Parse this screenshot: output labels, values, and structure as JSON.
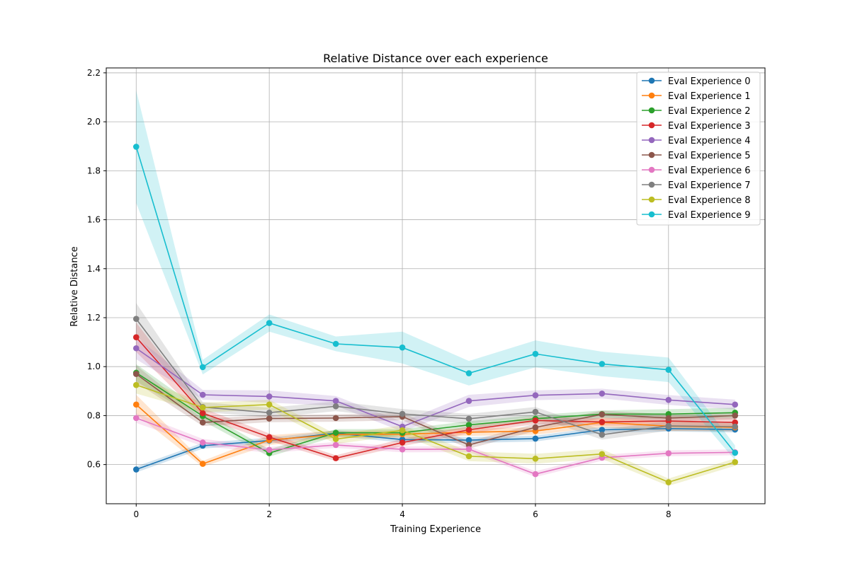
{
  "chart_data": {
    "type": "line",
    "title": "Relative Distance over each experience",
    "xlabel": "Training Experience",
    "ylabel": "Relative Distance",
    "xlim": [
      -0.45,
      9.45
    ],
    "ylim": [
      0.44,
      2.22
    ],
    "xticks": [
      0,
      2,
      4,
      6,
      8
    ],
    "yticks": [
      0.6,
      0.8,
      1.0,
      1.2,
      1.4,
      1.6,
      1.8,
      2.0,
      2.2
    ],
    "grid": true,
    "legend_position": "top-right",
    "x": [
      0,
      1,
      2,
      3,
      4,
      5,
      6,
      7,
      8,
      9
    ],
    "series": [
      {
        "name": "Eval Experience 0",
        "color": "#1f77b4",
        "values": [
          0.58,
          0.677,
          0.698,
          0.728,
          0.702,
          0.7,
          0.706,
          0.742,
          0.747,
          0.743
        ],
        "band": [
          0.012,
          0.012,
          0.012,
          0.012,
          0.012,
          0.012,
          0.012,
          0.012,
          0.012,
          0.012
        ]
      },
      {
        "name": "Eval Experience 1",
        "color": "#ff7f0e",
        "values": [
          0.845,
          0.603,
          0.7,
          0.723,
          0.724,
          0.732,
          0.737,
          0.772,
          0.757,
          0.752
        ],
        "band": [
          0.04,
          0.012,
          0.02,
          0.015,
          0.015,
          0.015,
          0.015,
          0.02,
          0.02,
          0.015
        ]
      },
      {
        "name": "Eval Experience 2",
        "color": "#2ca02c",
        "values": [
          0.975,
          0.798,
          0.647,
          0.73,
          0.73,
          0.762,
          0.787,
          0.806,
          0.806,
          0.812
        ],
        "band": [
          0.035,
          0.02,
          0.015,
          0.015,
          0.015,
          0.015,
          0.015,
          0.015,
          0.02,
          0.02
        ]
      },
      {
        "name": "Eval Experience 3",
        "color": "#d62728",
        "values": [
          1.12,
          0.81,
          0.712,
          0.626,
          0.69,
          0.742,
          0.78,
          0.774,
          0.778,
          0.772
        ],
        "band": [
          0.06,
          0.02,
          0.015,
          0.012,
          0.015,
          0.015,
          0.015,
          0.015,
          0.02,
          0.02
        ]
      },
      {
        "name": "Eval Experience 4",
        "color": "#9467bd",
        "values": [
          1.075,
          0.885,
          0.878,
          0.86,
          0.755,
          0.86,
          0.883,
          0.89,
          0.864,
          0.845
        ],
        "band": [
          0.045,
          0.02,
          0.025,
          0.02,
          0.02,
          0.025,
          0.02,
          0.02,
          0.02,
          0.02
        ]
      },
      {
        "name": "Eval Experience 5",
        "color": "#8c564b",
        "values": [
          0.97,
          0.772,
          0.788,
          0.79,
          0.796,
          0.68,
          0.752,
          0.805,
          0.79,
          0.8
        ],
        "band": [
          0.035,
          0.015,
          0.015,
          0.015,
          0.015,
          0.015,
          0.015,
          0.015,
          0.015,
          0.015
        ]
      },
      {
        "name": "Eval Experience 6",
        "color": "#e377c2",
        "values": [
          0.79,
          0.69,
          0.66,
          0.68,
          0.662,
          0.663,
          0.561,
          0.628,
          0.646,
          0.65
        ],
        "band": [
          0.02,
          0.015,
          0.012,
          0.012,
          0.012,
          0.012,
          0.012,
          0.012,
          0.012,
          0.012
        ]
      },
      {
        "name": "Eval Experience 7",
        "color": "#7f7f7f",
        "values": [
          1.195,
          0.835,
          0.812,
          0.838,
          0.807,
          0.787,
          0.815,
          0.722,
          0.758,
          0.755
        ],
        "band": [
          0.065,
          0.02,
          0.02,
          0.02,
          0.02,
          0.02,
          0.02,
          0.02,
          0.02,
          0.02
        ]
      },
      {
        "name": "Eval Experience 8",
        "color": "#bcbd22",
        "values": [
          0.925,
          0.833,
          0.845,
          0.704,
          0.74,
          0.634,
          0.624,
          0.643,
          0.528,
          0.61
        ],
        "band": [
          0.035,
          0.02,
          0.02,
          0.02,
          0.02,
          0.02,
          0.02,
          0.02,
          0.015,
          0.015
        ]
      },
      {
        "name": "Eval Experience 9",
        "color": "#17becf",
        "values": [
          1.898,
          0.998,
          1.178,
          1.093,
          1.078,
          0.973,
          1.052,
          1.011,
          0.987,
          0.648
        ],
        "band": [
          0.23,
          0.03,
          0.035,
          0.03,
          0.065,
          0.05,
          0.055,
          0.05,
          0.05,
          0.03
        ]
      }
    ]
  }
}
